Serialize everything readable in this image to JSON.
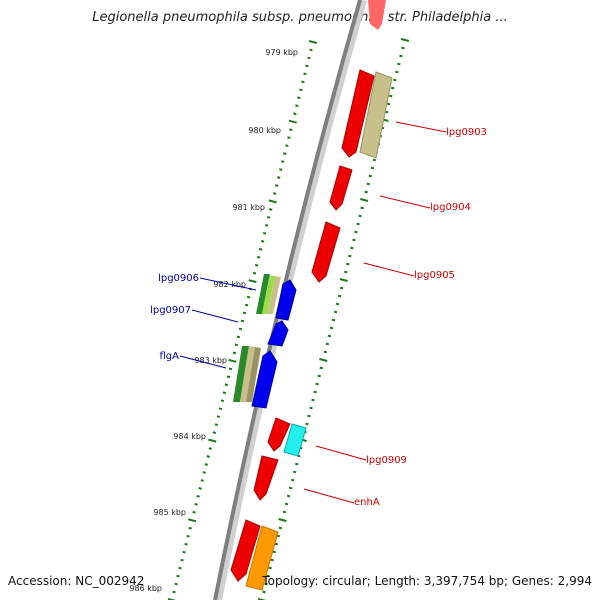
{
  "map": {
    "title": "Legionella pneumophila subsp. pneumophila str. Philadelphia ...",
    "accession": "Accession: NC_002942",
    "topology": "Topology: circular; Length: 3,397,754 bp; Genes: 2,994",
    "colors": {
      "backbone": "#7f7f7f",
      "scale_ticks": "#1a7a1a",
      "forward_label": "#cc0000",
      "reverse_label": "#0000aa"
    },
    "scale": [
      {
        "label": "979 kbp"
      },
      {
        "label": "980 kbp"
      },
      {
        "label": "981 kbp"
      },
      {
        "label": "982 kbp"
      },
      {
        "label": "983 kbp"
      },
      {
        "label": "984 kbp"
      },
      {
        "label": "985 kbp"
      },
      {
        "label": "986 kbp"
      }
    ],
    "gene_labels": [
      {
        "text": "lpg0903",
        "strand": "forward"
      },
      {
        "text": "lpg0904",
        "strand": "forward"
      },
      {
        "text": "lpg0905",
        "strand": "forward"
      },
      {
        "text": "lpg0906",
        "strand": "reverse"
      },
      {
        "text": "lpg0907",
        "strand": "reverse"
      },
      {
        "text": "flgA",
        "strand": "reverse"
      },
      {
        "text": "lpg0909",
        "strand": "forward"
      },
      {
        "text": "enhA",
        "strand": "forward"
      }
    ]
  }
}
